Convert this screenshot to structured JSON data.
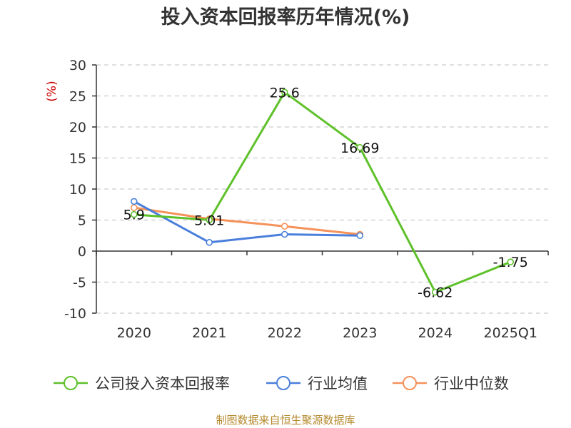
{
  "chart_data": {
    "type": "line",
    "title": "投入资本回报率历年情况(%)",
    "ylabel": "(%)",
    "xlabel": "",
    "categories": [
      "2020",
      "2021",
      "2022",
      "2023",
      "2024",
      "2025Q1"
    ],
    "ylim": [
      -10,
      30
    ],
    "yticks": [
      30,
      25,
      20,
      15,
      10,
      5,
      0,
      -5,
      -10
    ],
    "grid": true,
    "legend_position": "bottom",
    "series": [
      {
        "name": "公司投入资本回报率",
        "color": "#5ec12a",
        "values": [
          5.9,
          5.01,
          25.6,
          16.69,
          -6.62,
          -1.75
        ],
        "labels": [
          "5.9",
          "5.01",
          "25.6",
          "16.69",
          "-6.62",
          "-1.75"
        ]
      },
      {
        "name": "行业均值",
        "color": "#4a7fdc",
        "values": [
          8.0,
          1.4,
          2.7,
          2.5,
          null,
          null
        ]
      },
      {
        "name": "行业中位数",
        "color": "#f5925a",
        "values": [
          7.0,
          5.2,
          4.0,
          2.7,
          null,
          null
        ]
      }
    ],
    "source": "制图数据来自恒生聚源数据库"
  }
}
